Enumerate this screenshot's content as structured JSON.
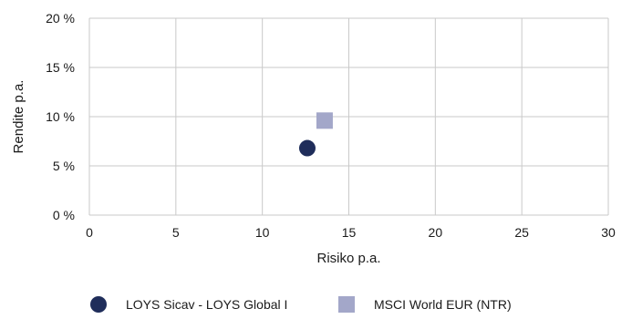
{
  "chart_data": {
    "type": "scatter",
    "xlabel": "Risiko p.a.",
    "ylabel": "Rendite p.a.",
    "xlim": [
      0,
      30
    ],
    "ylim": [
      0,
      20
    ],
    "x_ticks": [
      0,
      5,
      10,
      15,
      20,
      25,
      30
    ],
    "y_ticks": [
      0,
      5,
      10,
      15,
      20
    ],
    "x_tick_labels": [
      "0",
      "5",
      "10",
      "15",
      "20",
      "25",
      "30"
    ],
    "y_tick_labels": [
      "0 %",
      "5 %",
      "10 %",
      "15 %",
      "20 %"
    ],
    "grid": true,
    "legend_position": "bottom",
    "series": [
      {
        "name": "LOYS Sicav - LOYS Global I",
        "marker": "circle",
        "color": "#1f2d5a",
        "points": [
          {
            "x": 12.6,
            "y": 6.8
          }
        ]
      },
      {
        "name": "MSCI World EUR (NTR)",
        "marker": "square",
        "color": "#a3a7c9",
        "points": [
          {
            "x": 13.6,
            "y": 9.6
          }
        ]
      }
    ]
  }
}
